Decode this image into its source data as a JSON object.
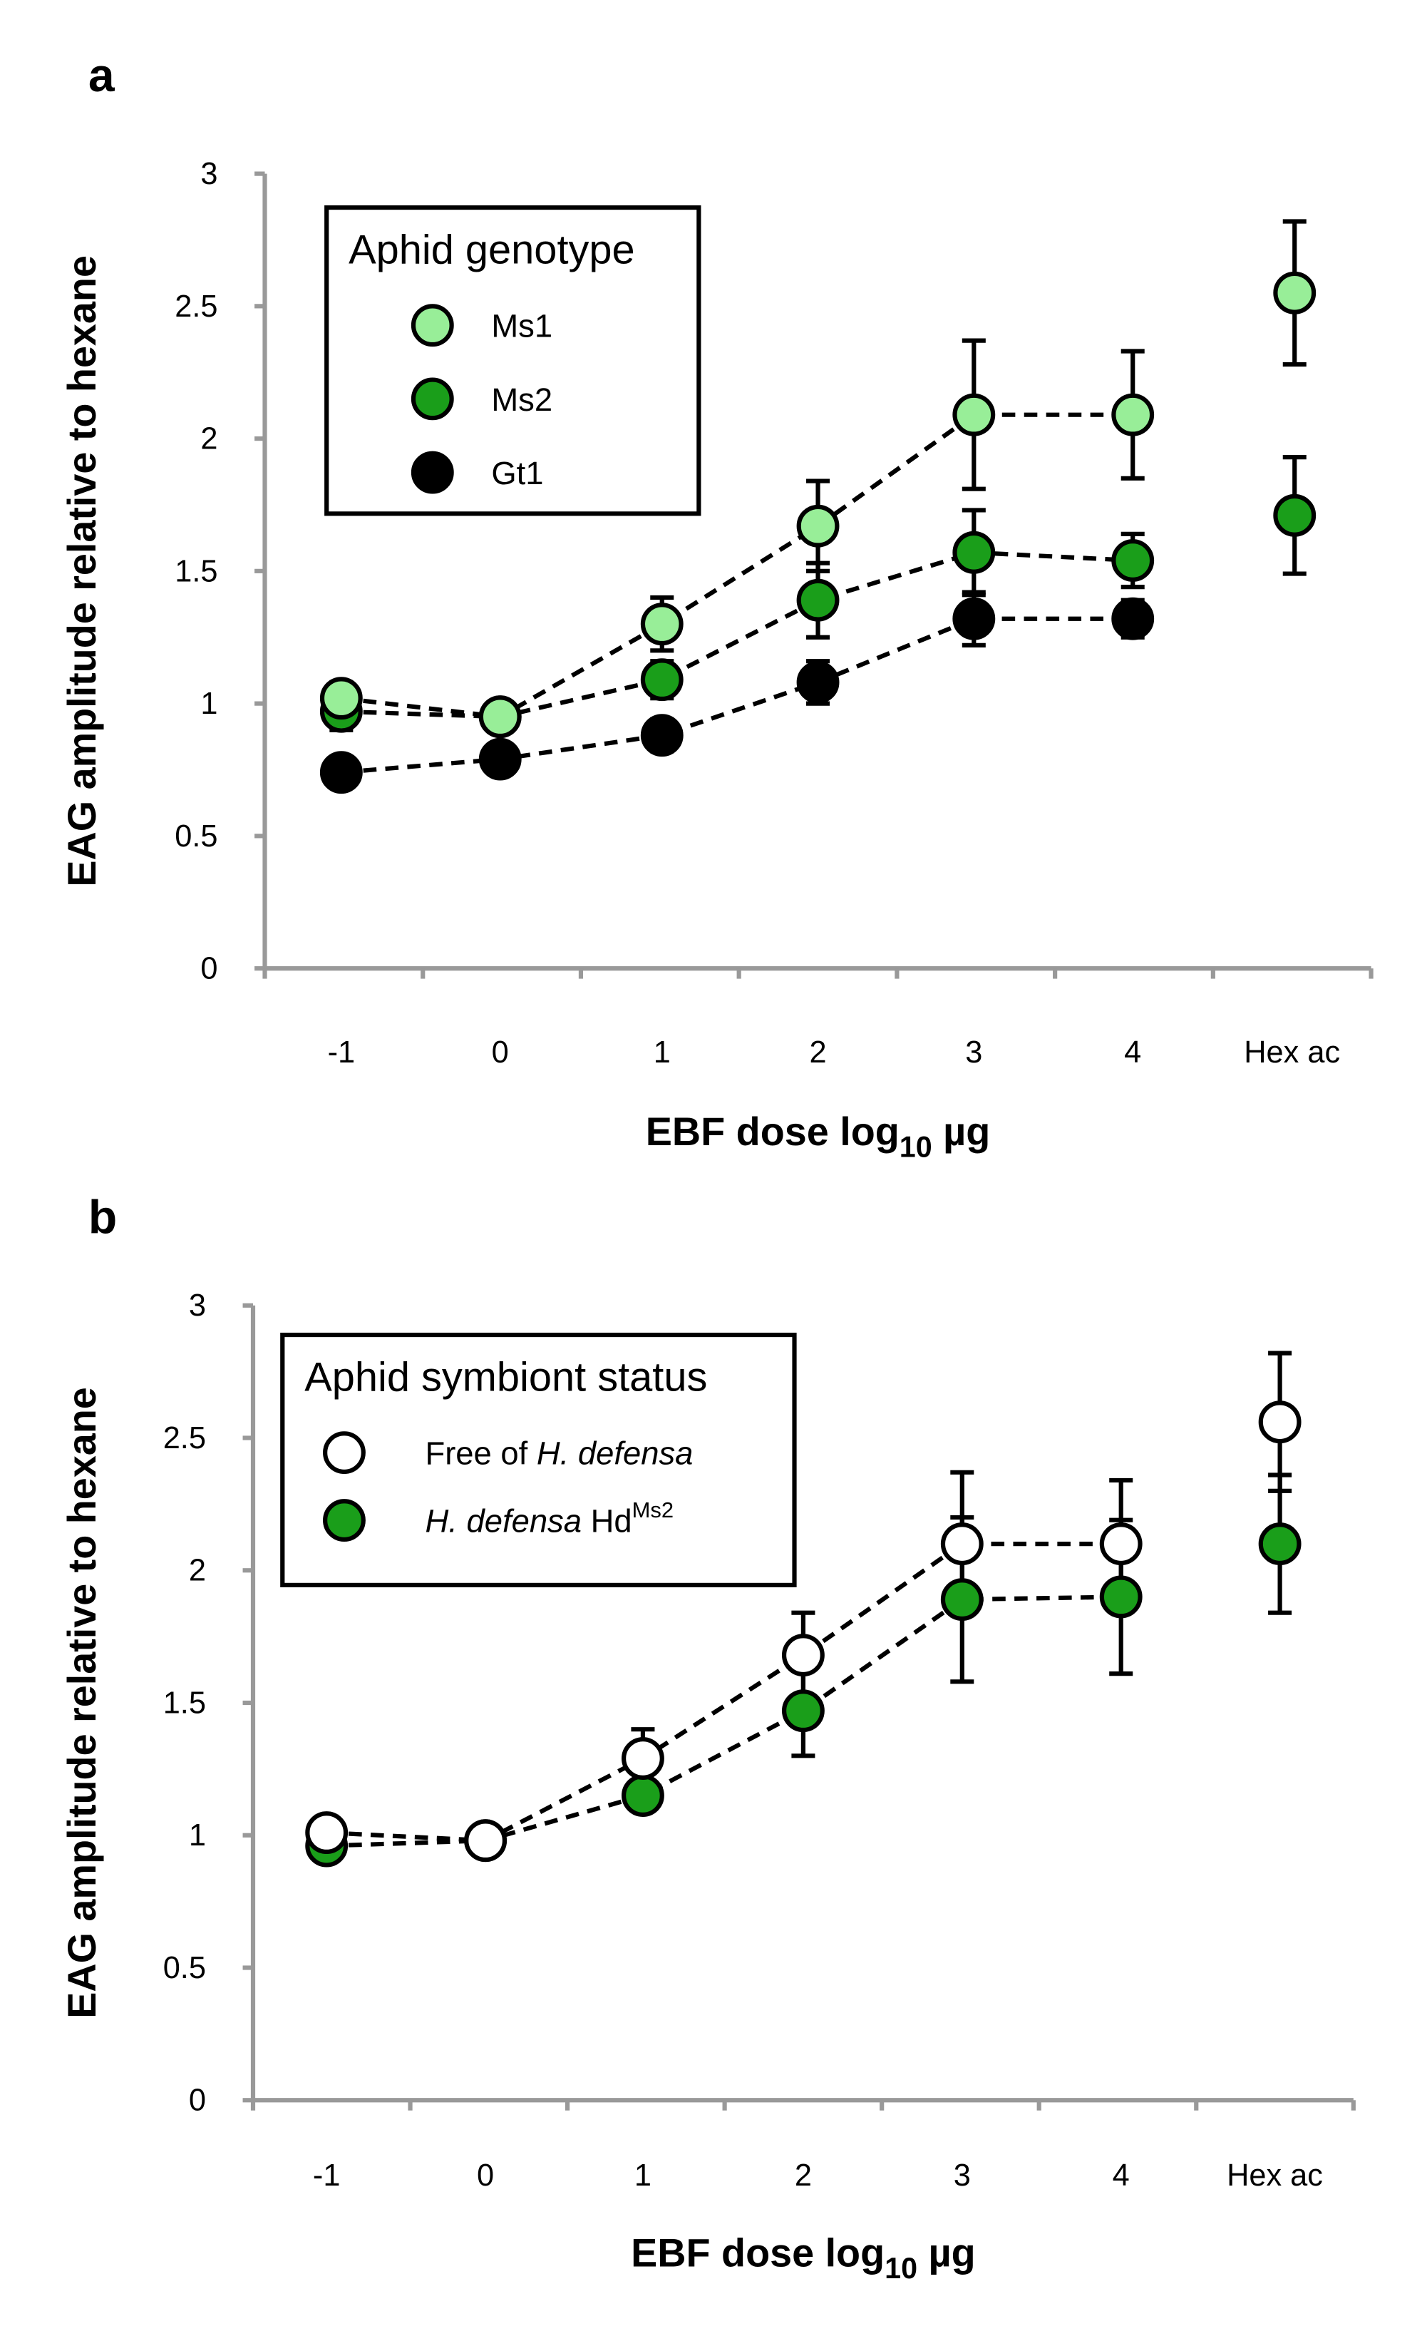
{
  "chart_data": [
    {
      "type": "line",
      "panel_label": "a",
      "xlabel": "EBF dose log",
      "xlabel_sub": "10",
      "xlabel_unit": " µg",
      "ylabel": "EAG amplitude relative to hexane",
      "ylim": [
        0,
        3
      ],
      "yticks": [
        "0",
        "0.5",
        "1",
        "1.5",
        "2",
        "2.5",
        "3"
      ],
      "categories": [
        "-1",
        "0",
        "1",
        "2",
        "3",
        "4",
        "Hex ac"
      ],
      "legend_title": "Aphid genotype",
      "legend_position": "top-left",
      "grid": false,
      "series": [
        {
          "name": "Ms1",
          "color": "#98ee98",
          "values": [
            1.02,
            0.95,
            1.3,
            1.67,
            2.09,
            2.09,
            2.55
          ],
          "errors": [
            0.06,
            0.04,
            0.1,
            0.17,
            0.28,
            0.24,
            0.27
          ]
        },
        {
          "name": "Ms2",
          "color": "#1a9e1a",
          "values": [
            0.97,
            0.95,
            1.09,
            1.39,
            1.57,
            1.54,
            1.71
          ],
          "errors": [
            0.07,
            0.04,
            0.07,
            0.14,
            0.16,
            0.1,
            0.22
          ]
        },
        {
          "name": "Gt1",
          "color": "#000000",
          "values": [
            0.74,
            0.79,
            0.88,
            1.08,
            1.32,
            1.32,
            null
          ],
          "errors": [
            0.05,
            0.04,
            0.06,
            0.08,
            0.1,
            0.07,
            null
          ]
        }
      ]
    },
    {
      "type": "line",
      "panel_label": "b",
      "xlabel": "EBF dose log",
      "xlabel_sub": "10",
      "xlabel_unit": " µg",
      "ylabel": "EAG amplitude relative to hexane",
      "ylim": [
        0,
        3
      ],
      "yticks": [
        "0",
        "0.5",
        "1",
        "1.5",
        "2",
        "2.5",
        "3"
      ],
      "categories": [
        "-1",
        "0",
        "1",
        "2",
        "3",
        "4",
        "Hex ac"
      ],
      "legend_title": "Aphid symbiont status",
      "legend_position": "top-left",
      "grid": false,
      "series": [
        {
          "name": "Free of H. defensa",
          "label_plain": "Free of ",
          "label_italic": "H. defensa",
          "color": "#ffffff",
          "values": [
            1.01,
            0.98,
            1.29,
            1.68,
            2.1,
            2.1,
            2.56
          ],
          "errors": [
            0.06,
            0.03,
            0.11,
            0.16,
            0.27,
            0.24,
            0.26
          ]
        },
        {
          "name": "H. defensa HdMs2",
          "label_italic": "H. defensa",
          "label_plain": " Hd",
          "label_sup": "Ms2",
          "color": "#1a9e1a",
          "values": [
            0.96,
            0.98,
            1.15,
            1.47,
            1.89,
            1.9,
            2.1
          ],
          "errors": [
            0.03,
            0.03,
            0.05,
            0.17,
            0.31,
            0.29,
            0.26
          ]
        }
      ]
    }
  ]
}
